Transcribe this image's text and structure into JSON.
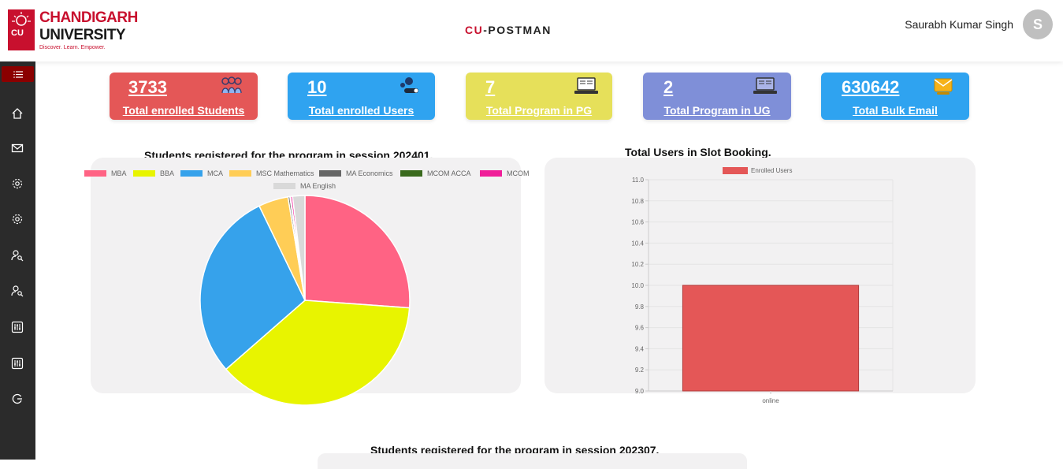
{
  "header": {
    "logo": {
      "mark": "CU",
      "line1": "CHANDIGARH",
      "line2": "UNIVERSITY",
      "tagline": "Discover. Learn. Empower."
    },
    "title_accent": "CU",
    "title_rest": "-POSTMAN",
    "user_name": "Saurabh Kumar Singh",
    "avatar_initial": "S"
  },
  "sidebar": {
    "items": [
      {
        "icon": "menu-icon"
      },
      {
        "icon": "home-icon"
      },
      {
        "icon": "mail-icon"
      },
      {
        "icon": "gear-icon"
      },
      {
        "icon": "gear-icon"
      },
      {
        "icon": "user-search-icon"
      },
      {
        "icon": "user-search-icon"
      },
      {
        "icon": "sliders-icon"
      },
      {
        "icon": "sliders-icon"
      },
      {
        "icon": "logout-icon"
      }
    ]
  },
  "cards": [
    {
      "value": "3733",
      "label": "Total enrolled Students",
      "color": "#e45757",
      "icon": "students-icon"
    },
    {
      "value": "10",
      "label": "Total enrolled Users",
      "color": "#2fa3f0",
      "icon": "users-icon"
    },
    {
      "value": "7",
      "label": "Total Program in PG",
      "color": "#e6e05a",
      "icon": "laptop-icon"
    },
    {
      "value": "2",
      "label": "Total Program in UG",
      "color": "#7f8fd8",
      "icon": "laptop-icon"
    },
    {
      "value": "630642",
      "label": "Total Bulk Email",
      "color": "#2fa3f0",
      "icon": "email-icon"
    }
  ],
  "chart_data": [
    {
      "type": "pie",
      "title": "Students registered for the program in session 202401.",
      "legend_position": "top",
      "categories": [
        "MBA",
        "BBA",
        "MCA",
        "MSC Mathematics",
        "MA Economics",
        "MCOM ACCA",
        "MCOM",
        "MA English"
      ],
      "values": [
        26.2,
        37.5,
        29.3,
        4.6,
        0.3,
        0.1,
        0.3,
        1.9
      ],
      "colors": [
        "#ff6384",
        "#e8f400",
        "#36a2eb",
        "#ffcd56",
        "#666666",
        "#3a6a1d",
        "#f01e99",
        "#d9d9d9"
      ]
    },
    {
      "type": "bar",
      "title": "Total Users in Slot Booking.",
      "legend_position": "top",
      "categories": [
        "online"
      ],
      "series": [
        {
          "name": "Enrolled Users",
          "values": [
            10
          ],
          "color": "#e45757"
        }
      ],
      "ylim": [
        9.0,
        11.0
      ],
      "yticks": [
        "11.0",
        "10.8",
        "10.6",
        "10.4",
        "10.2",
        "10.0",
        "9.8",
        "9.6",
        "9.4",
        "9.2",
        "9.0"
      ],
      "grid": true
    },
    {
      "type": "pie",
      "title": "Students registered for the program in session 202307."
    }
  ]
}
